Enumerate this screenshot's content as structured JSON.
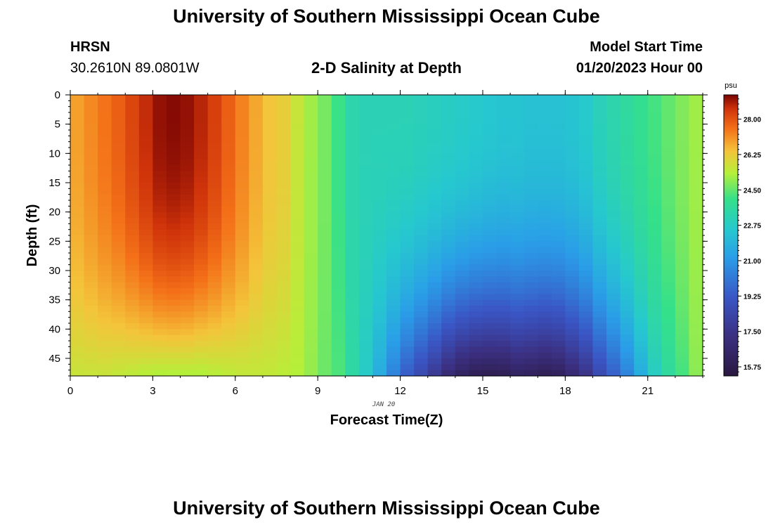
{
  "header": {
    "title": "University of Southern Mississippi Ocean Cube",
    "station": "HRSN",
    "coordinates": "30.2610N  89.0801W",
    "subtitle": "2-D Salinity at Depth",
    "model_start_label": "Model Start Time",
    "model_start_value": "01/20/2023 Hour 00",
    "footer_title": "University of Southern Mississippi Ocean Cube"
  },
  "chart_data": {
    "type": "heatmap",
    "title": "2-D Salinity at Depth",
    "xlabel": "Forecast Time(Z)",
    "ylabel": "Depth (ft)",
    "date_label": "JAN 20",
    "x_ticks": [
      0,
      3,
      6,
      9,
      12,
      15,
      18,
      21
    ],
    "y_ticks": [
      0,
      5,
      10,
      15,
      20,
      25,
      30,
      35,
      40,
      45
    ],
    "xlim": [
      0,
      23
    ],
    "ylim": [
      0,
      48
    ],
    "y_inverted": true,
    "colorbar": {
      "unit": "psu",
      "range": [
        15.3,
        29.2
      ],
      "ticks": [
        "15.75",
        "17.50",
        "19.25",
        "21.00",
        "22.75",
        "24.50",
        "26.25",
        "28.00"
      ],
      "colormap": "turbo"
    },
    "surface_salinity_psu": [
      26.9,
      27.2,
      27.5,
      27.8,
      28.2,
      28.6,
      29.0,
      29.1,
      29.0,
      28.7,
      28.3,
      27.8,
      27.3,
      26.8,
      26.4,
      26.2,
      25.6,
      25.1,
      24.7,
      24.1,
      23.3,
      23.1,
      23.1,
      23.1,
      23.1,
      23.0,
      22.9,
      22.8,
      22.7,
      22.6,
      22.5,
      22.4,
      22.4,
      22.3,
      22.3,
      22.3,
      22.4,
      22.6,
      23.0,
      23.3,
      23.6,
      23.9,
      24.2,
      24.5,
      24.8,
      25.1
    ],
    "bottom_salinity_psu": [
      25.6,
      25.6,
      25.6,
      25.5,
      25.4,
      25.3,
      25.2,
      25.2,
      25.2,
      25.2,
      25.3,
      25.4,
      25.5,
      25.5,
      25.5,
      25.4,
      25.3,
      25.0,
      24.6,
      24.3,
      23.5,
      22.7,
      21.6,
      20.4,
      19.3,
      18.5,
      17.7,
      16.8,
      16.2,
      15.9,
      15.8,
      15.9,
      16.2,
      16.1,
      15.9,
      16.1,
      16.7,
      17.4,
      18.5,
      19.4,
      20.4,
      21.6,
      22.8,
      23.6,
      24.2,
      24.9
    ]
  }
}
